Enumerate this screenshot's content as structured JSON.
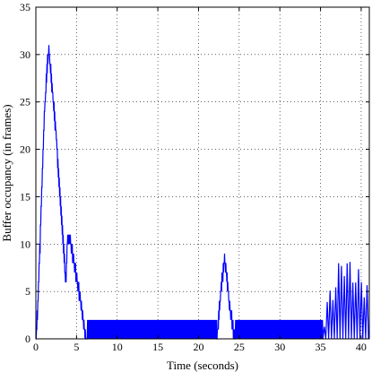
{
  "chart_data": {
    "type": "line",
    "title": "",
    "xlabel": "Time (seconds)",
    "ylabel": "Buffer occupancy (in frames)",
    "xlim": [
      0,
      41
    ],
    "ylim": [
      0,
      35
    ],
    "xticks": [
      0,
      5,
      10,
      15,
      20,
      25,
      30,
      35,
      40
    ],
    "yticks": [
      0,
      5,
      10,
      15,
      20,
      25,
      30,
      35
    ],
    "grid": true,
    "grid_style": "dotted",
    "legend": "none",
    "line_color": "#0000ff",
    "series": [
      {
        "envelope_points": [
          [
            0,
            0
          ],
          [
            0.3,
            5
          ],
          [
            0.7,
            15
          ],
          [
            1.1,
            25
          ],
          [
            1.45,
            30
          ],
          [
            1.6,
            31
          ],
          [
            2.0,
            27
          ],
          [
            2.5,
            22
          ],
          [
            3.0,
            15
          ],
          [
            3.5,
            9
          ],
          [
            3.7,
            6
          ],
          [
            3.9,
            11
          ],
          [
            4.2,
            11
          ],
          [
            4.4,
            10
          ],
          [
            4.8,
            8
          ],
          [
            5.2,
            6
          ],
          [
            5.6,
            4
          ],
          [
            5.9,
            2
          ],
          [
            6.1,
            0.5
          ],
          [
            6.3,
            0
          ],
          [
            22.2,
            0
          ],
          [
            22.5,
            3
          ],
          [
            22.8,
            6
          ],
          [
            23.2,
            9
          ],
          [
            23.5,
            7
          ],
          [
            23.8,
            4
          ],
          [
            24.2,
            2
          ],
          [
            24.5,
            0
          ],
          [
            41,
            0
          ]
        ],
        "oscillation_segments": [
          {
            "x_start": 6.3,
            "x_end": 22.2,
            "low": 0,
            "high": 2,
            "period": 0.12
          },
          {
            "x_start": 24.5,
            "x_end": 35.3,
            "low": 0,
            "high": 2,
            "period": 0.12
          },
          {
            "x_start": 35.3,
            "x_end": 41.0,
            "low": 0,
            "high_start": 2,
            "high_peak": 8,
            "peak_x": 37.7,
            "high_end": 5,
            "period": 0.35
          }
        ]
      }
    ]
  }
}
